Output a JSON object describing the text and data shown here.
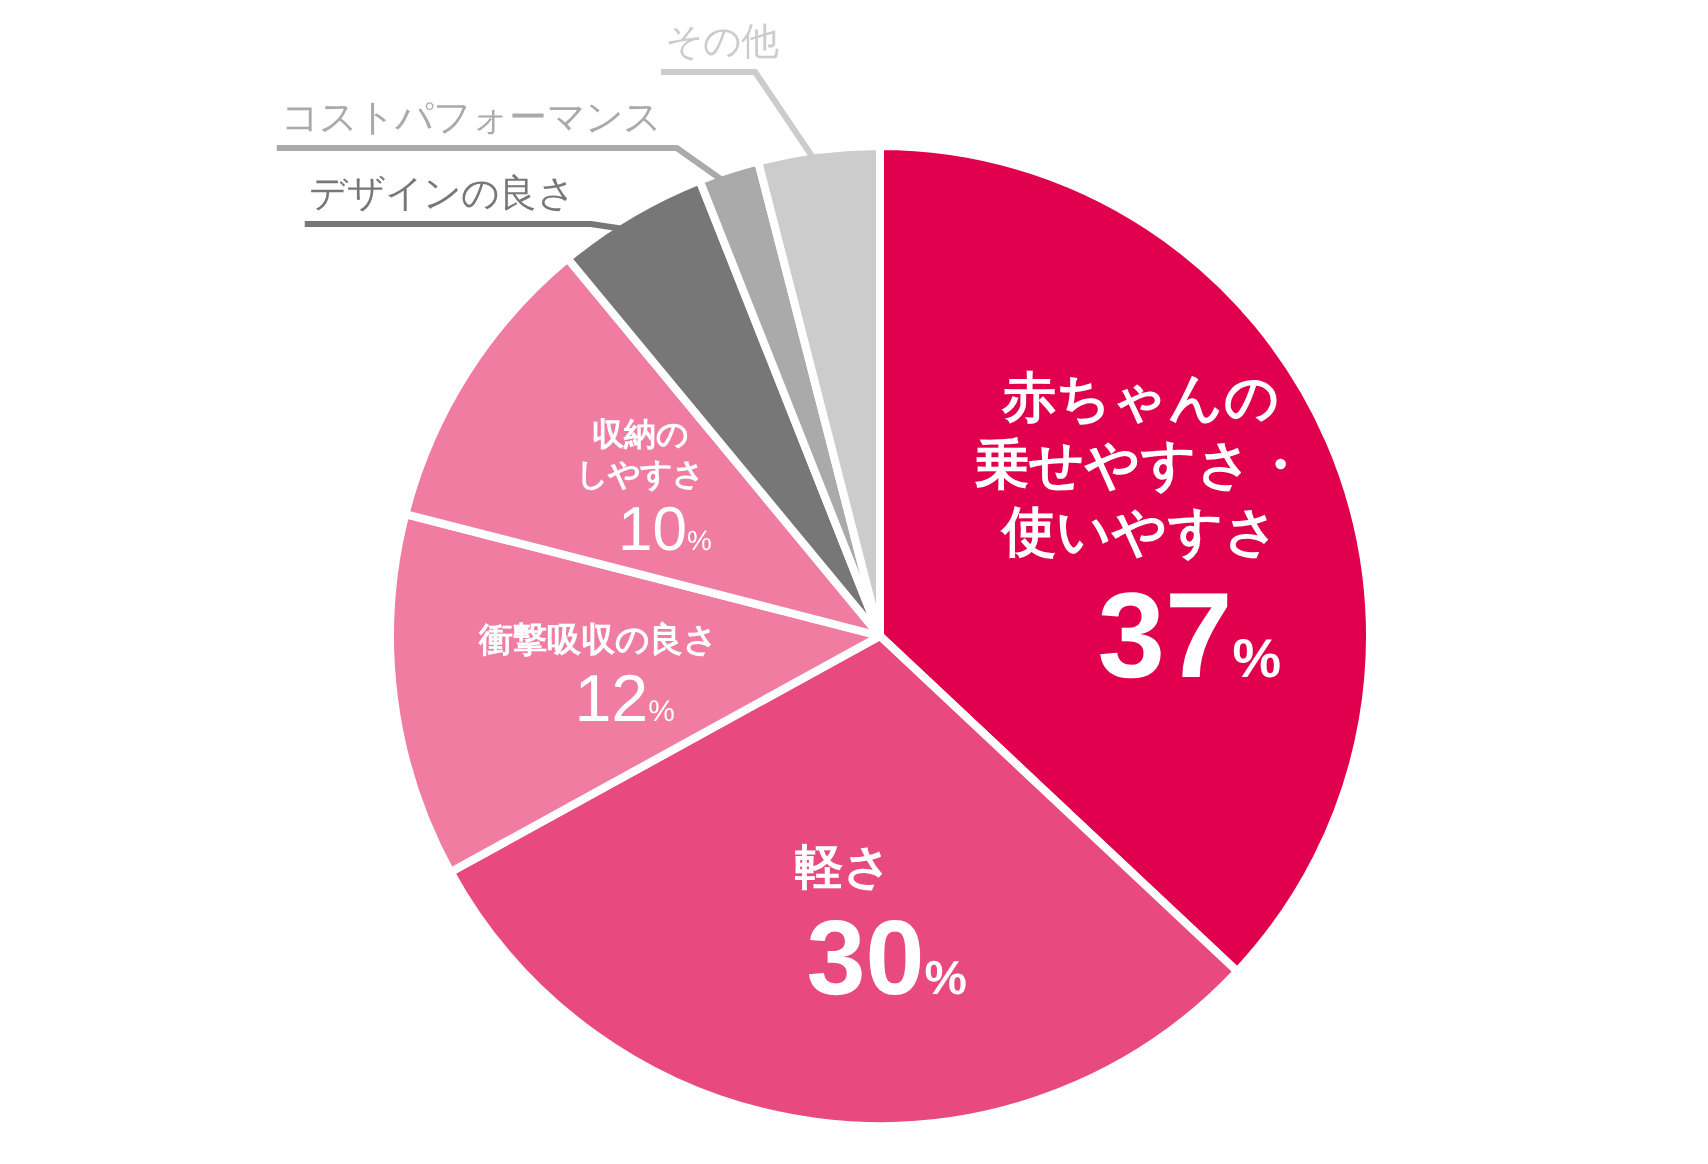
{
  "chart_data": {
    "type": "pie",
    "categories": [
      "赤ちゃんの乗せやすさ・使いやすさ",
      "軽さ",
      "衝撃吸収の良さ",
      "収納のしやすさ",
      "デザインの良さ",
      "コストパフォーマンス",
      "その他"
    ],
    "values": [
      37,
      30,
      12,
      10,
      5,
      2,
      4
    ],
    "colors": [
      "#e0004d",
      "#e84a7f",
      "#f07ca2",
      "#f07ca2",
      "#777777",
      "#aaaaaa",
      "#cccccc"
    ],
    "value_labels": [
      "37%",
      "30%",
      "12%",
      "10%",
      null,
      null,
      null
    ]
  }
}
